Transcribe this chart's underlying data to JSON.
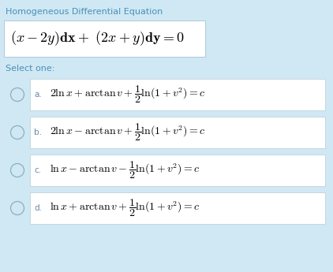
{
  "bg_color": "#cfe8f3",
  "white": "#ffffff",
  "title_text": "Homogeneous Differential Equation",
  "title_color": "#4a90b8",
  "select_text": "Select one:",
  "select_color": "#4a90b8",
  "figsize": [
    4.22,
    3.45
  ],
  "dpi": 100,
  "title_fontsize": 8.0,
  "eq_fontsize": 13.0,
  "label_fontsize": 7.5,
  "option_fontsize": 10.0,
  "option_maths": [
    "$2\\ln x + \\arctan v + \\dfrac{1}{2}\\ln(1 + v^{2}) = c$",
    "$2\\ln x - \\arctan v + \\dfrac{1}{2}\\ln(1 + v^{2}) = c$",
    "$\\ln x - \\arctan v - \\dfrac{1}{2}\\ln(1 + v^{2}) = c$",
    "$\\ln x + \\arctan v + \\dfrac{1}{2}\\ln(1 + v^{2}) = c$"
  ],
  "option_labels": [
    "a.",
    "b.",
    "c.",
    "d."
  ]
}
